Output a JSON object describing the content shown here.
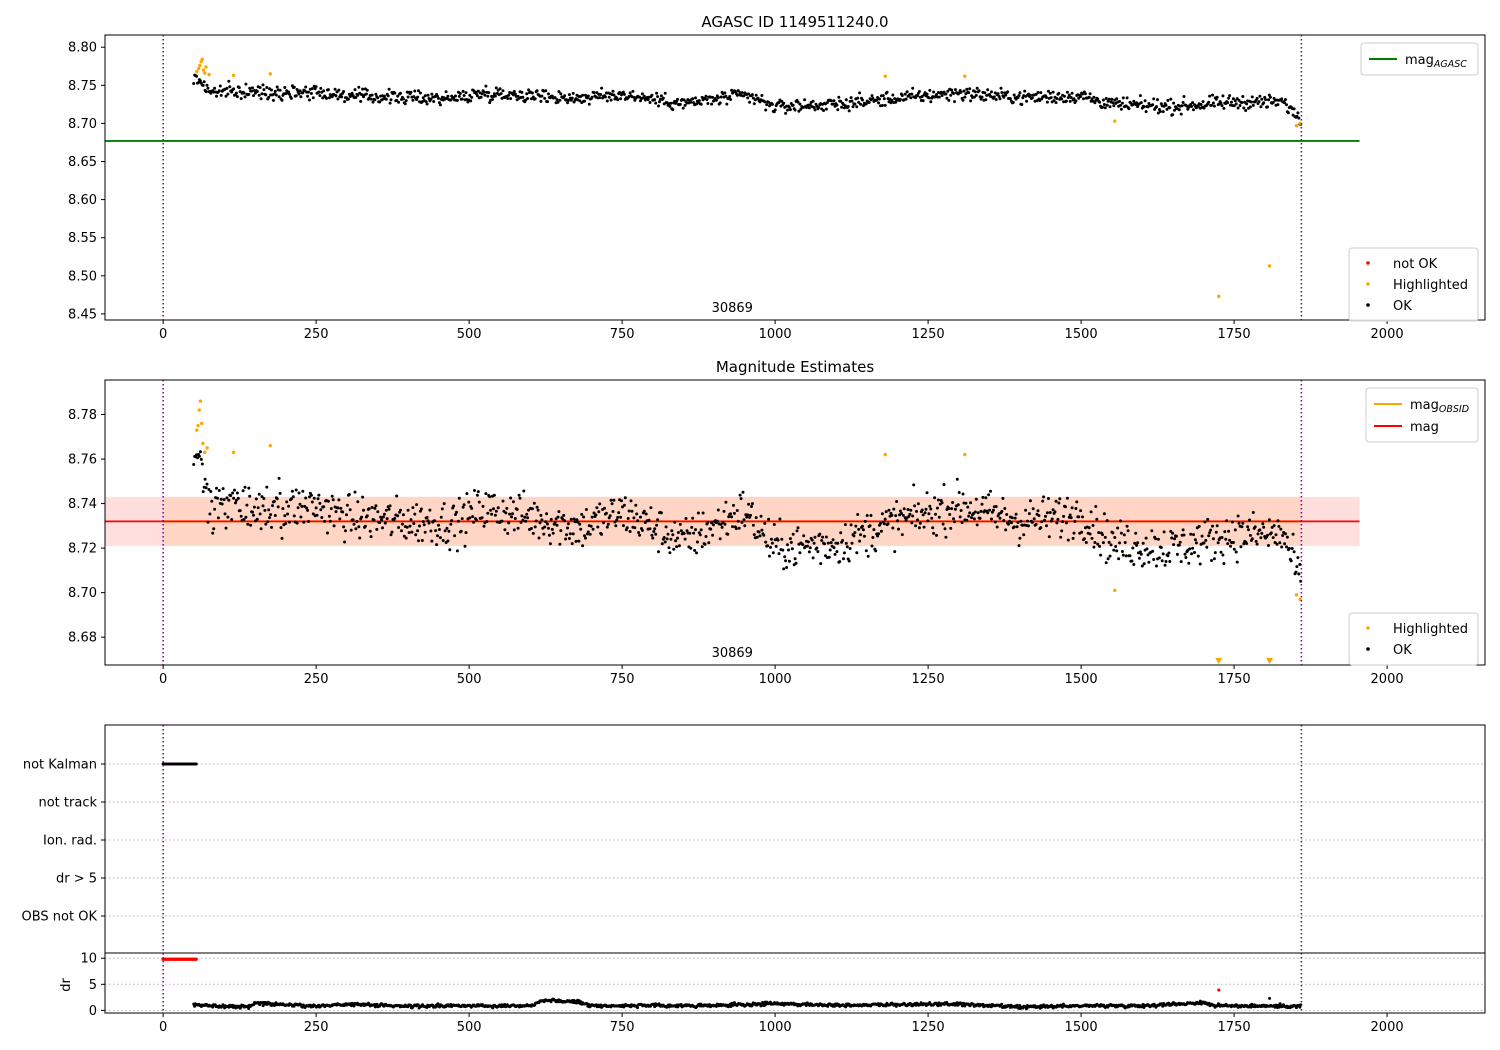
{
  "figure": {
    "panel1_title": "AGASC ID 1149511240.0",
    "panel2_title": "Magnitude Estimates",
    "obsid_label": "30869"
  },
  "colors": {
    "ok": "#000000",
    "highlighted": "#ffa500",
    "not_ok": "#ff0000",
    "agasc_line": "#008000",
    "mean_line": "#ff0000",
    "obsid_line": "#ffa500",
    "band": "#ffb6b6",
    "band_orange": "#ffd0b0",
    "vline": "#800080"
  },
  "legends": {
    "p1_line": [
      {
        "label": "mag",
        "sub": "AGASC",
        "color": "#008000"
      }
    ],
    "p1_markers": [
      {
        "label": "not OK",
        "color": "#ff0000"
      },
      {
        "label": "Highlighted",
        "color": "#ffa500"
      },
      {
        "label": "OK",
        "color": "#000000"
      }
    ],
    "p2_line": [
      {
        "label": "mag",
        "sub": "OBSID",
        "color": "#ffa500"
      },
      {
        "label": "mag",
        "sub": "",
        "color": "#ff0000"
      }
    ],
    "p2_markers": [
      {
        "label": "Highlighted",
        "color": "#ffa500"
      },
      {
        "label": "OK",
        "color": "#000000"
      }
    ]
  },
  "chart_data": [
    {
      "type": "scatter",
      "title": "AGASC ID 1149511240.0",
      "xlim": [
        -95,
        2160
      ],
      "ylim": [
        8.442,
        8.816
      ],
      "xticks": [
        0,
        250,
        500,
        750,
        1000,
        1250,
        1500,
        1750,
        2000
      ],
      "yticks": [
        8.45,
        8.5,
        8.55,
        8.6,
        8.65,
        8.7,
        8.75,
        8.8
      ],
      "vlines": [
        0,
        1860
      ],
      "hline": {
        "name": "mag_AGASC",
        "y": 8.677,
        "x": [
          -95,
          1955
        ]
      },
      "annotation": {
        "text": "30869",
        "x": 930
      },
      "ok_trend": [
        [
          50,
          8.758
        ],
        [
          60,
          8.757
        ],
        [
          75,
          8.742
        ],
        [
          150,
          8.741
        ],
        [
          250,
          8.742
        ],
        [
          300,
          8.736
        ],
        [
          400,
          8.734
        ],
        [
          480,
          8.733
        ],
        [
          520,
          8.74
        ],
        [
          600,
          8.737
        ],
        [
          680,
          8.733
        ],
        [
          750,
          8.738
        ],
        [
          850,
          8.726
        ],
        [
          950,
          8.737
        ],
        [
          1000,
          8.722
        ],
        [
          1100,
          8.725
        ],
        [
          1200,
          8.733
        ],
        [
          1300,
          8.74
        ],
        [
          1400,
          8.734
        ],
        [
          1500,
          8.736
        ],
        [
          1550,
          8.725
        ],
        [
          1650,
          8.722
        ],
        [
          1750,
          8.728
        ],
        [
          1830,
          8.728
        ],
        [
          1860,
          8.705
        ]
      ],
      "ok_spread": 0.008,
      "highlighted": [
        [
          55,
          8.768
        ],
        [
          58,
          8.772
        ],
        [
          60,
          8.776
        ],
        [
          62,
          8.781
        ],
        [
          64,
          8.784
        ],
        [
          66,
          8.77
        ],
        [
          68,
          8.766
        ],
        [
          70,
          8.774
        ],
        [
          75,
          8.764
        ],
        [
          115,
          8.763
        ],
        [
          175,
          8.765
        ],
        [
          1180,
          8.762
        ],
        [
          1310,
          8.762
        ],
        [
          1555,
          8.703
        ],
        [
          1725,
          8.473
        ],
        [
          1808,
          8.513
        ],
        [
          1852,
          8.697
        ],
        [
          1858,
          8.7
        ]
      ],
      "not_ok": []
    },
    {
      "type": "scatter",
      "title": "Magnitude Estimates",
      "xlim": [
        -95,
        2160
      ],
      "ylim": [
        8.6675,
        8.7955
      ],
      "xticks": [
        0,
        250,
        500,
        750,
        1000,
        1250,
        1500,
        1750,
        2000
      ],
      "yticks": [
        8.68,
        8.7,
        8.72,
        8.74,
        8.76,
        8.78
      ],
      "vlines": [
        0,
        1860
      ],
      "mean": {
        "name": "mag",
        "y": 8.732,
        "x": [
          -95,
          1955
        ]
      },
      "obsid_band": {
        "y1": 8.721,
        "y2": 8.743,
        "x": [
          0,
          1860
        ]
      },
      "outer_band": {
        "y1": 8.721,
        "y2": 8.743,
        "x": [
          -95,
          1955
        ]
      },
      "annotation": {
        "text": "30869",
        "x": 930
      },
      "ok_trend": [
        [
          50,
          8.76
        ],
        [
          60,
          8.756
        ],
        [
          75,
          8.74
        ],
        [
          150,
          8.737
        ],
        [
          250,
          8.739
        ],
        [
          300,
          8.734
        ],
        [
          400,
          8.732
        ],
        [
          480,
          8.731
        ],
        [
          520,
          8.738
        ],
        [
          600,
          8.734
        ],
        [
          680,
          8.729
        ],
        [
          750,
          8.736
        ],
        [
          850,
          8.723
        ],
        [
          950,
          8.737
        ],
        [
          1000,
          8.72
        ],
        [
          1100,
          8.722
        ],
        [
          1200,
          8.732
        ],
        [
          1300,
          8.739
        ],
        [
          1400,
          8.732
        ],
        [
          1500,
          8.735
        ],
        [
          1550,
          8.722
        ],
        [
          1650,
          8.72
        ],
        [
          1750,
          8.726
        ],
        [
          1830,
          8.726
        ],
        [
          1860,
          8.704
        ]
      ],
      "ok_spread": 0.009,
      "highlighted": [
        [
          55,
          8.773
        ],
        [
          57,
          8.775
        ],
        [
          59,
          8.782
        ],
        [
          61,
          8.786
        ],
        [
          63,
          8.776
        ],
        [
          65,
          8.767
        ],
        [
          68,
          8.763
        ],
        [
          72,
          8.765
        ],
        [
          115,
          8.763
        ],
        [
          175,
          8.766
        ],
        [
          1180,
          8.762
        ],
        [
          1310,
          8.762
        ],
        [
          1555,
          8.701
        ],
        [
          1852,
          8.699
        ],
        [
          1858,
          8.697
        ]
      ],
      "offscale_down": [
        1725,
        1808
      ]
    },
    {
      "type": "scatter",
      "title": "",
      "xlim": [
        -95,
        2160
      ],
      "categories": [
        "not Kalman",
        "not track",
        "Ion. rad.",
        "dr > 5",
        "OBS not OK"
      ],
      "flagged": [
        {
          "category": "not Kalman",
          "x_range": [
            0,
            55
          ]
        }
      ],
      "vlines": [
        0,
        1860
      ]
    },
    {
      "type": "scatter",
      "title": "",
      "ylabel": "dr",
      "xlim": [
        -95,
        2160
      ],
      "ylim": [
        -0.5,
        11
      ],
      "xticks": [
        0,
        250,
        500,
        750,
        1000,
        1250,
        1500,
        1750,
        2000
      ],
      "yticks": [
        0,
        5,
        10
      ],
      "vlines": [
        0,
        1860
      ],
      "not_ok_capped": {
        "y": 9.8,
        "x_range": [
          0,
          55
        ]
      },
      "ok_trend": [
        [
          50,
          1.0
        ],
        [
          140,
          0.7
        ],
        [
          150,
          1.4
        ],
        [
          250,
          0.8
        ],
        [
          300,
          1.2
        ],
        [
          400,
          0.8
        ],
        [
          500,
          0.9
        ],
        [
          600,
          0.9
        ],
        [
          620,
          2.0
        ],
        [
          680,
          1.6
        ],
        [
          700,
          0.9
        ],
        [
          900,
          0.9
        ],
        [
          1000,
          1.3
        ],
        [
          1100,
          1.0
        ],
        [
          1200,
          1.1
        ],
        [
          1300,
          1.2
        ],
        [
          1400,
          0.6
        ],
        [
          1500,
          0.9
        ],
        [
          1600,
          0.9
        ],
        [
          1700,
          1.5
        ],
        [
          1720,
          0.9
        ],
        [
          1860,
          0.8
        ]
      ],
      "outliers_ok": [
        [
          1808,
          2.3
        ]
      ],
      "outliers_not_ok": [
        [
          1725,
          3.9
        ]
      ]
    }
  ]
}
